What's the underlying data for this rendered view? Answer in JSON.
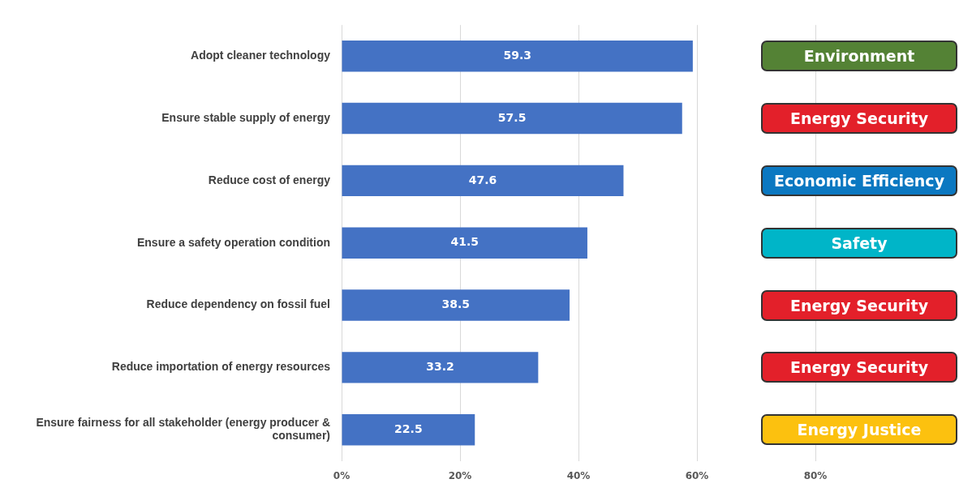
{
  "chart_data": [
    {
      "type": "bar",
      "orientation": "horizontal",
      "categories": [
        "Adopt cleaner technology",
        "Ensure stable supply of energy",
        "Reduce cost of energy",
        "Ensure a safety operation condition",
        "Reduce dependency on fossil fuel",
        "Reduce importation of energy resources",
        "Ensure fairness for all stakeholder (energy producer & consumer)"
      ],
      "values": [
        59.3,
        57.5,
        47.6,
        41.5,
        38.5,
        33.2,
        22.5
      ],
      "color": "#4472c4",
      "data_labels": true,
      "grid": "x",
      "xlim": [
        0,
        80
      ],
      "xticks": [
        {
          "value": 0,
          "label": "0%"
        },
        {
          "value": 20,
          "label": "20%"
        },
        {
          "value": 40,
          "label": "40%"
        },
        {
          "value": 60,
          "label": "60%"
        },
        {
          "value": 80,
          "label": "80%"
        }
      ]
    },
    {
      "type": "other",
      "categories": [
        "Environment",
        "Energy Security",
        "Economic Efficiency",
        "Safety",
        "Energy Security",
        "Energy Security",
        "Energy Justice"
      ],
      "colors": [
        "#548235",
        "#e3202a",
        "#0b78c1",
        "#00b5c8",
        "#e3202a",
        "#e3202a",
        "#fcc10f"
      ]
    }
  ]
}
